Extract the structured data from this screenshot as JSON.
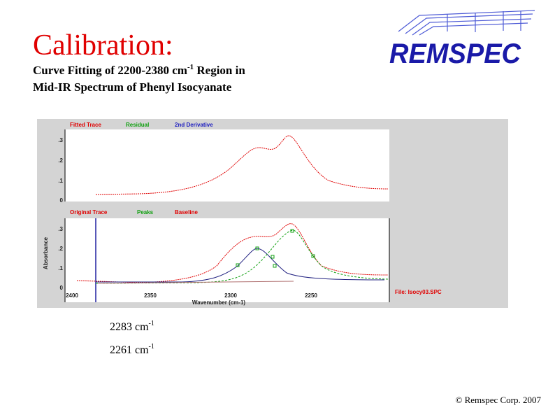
{
  "header": {
    "title": "Calibration:",
    "subtitle_line1": {
      "text": "Curve Fitting of 2200-2380 cm",
      "sup": "-1",
      "tail": " Region in"
    },
    "subtitle_line2": "Mid-IR Spectrum of Phenyl Isocyanate"
  },
  "logo": "REMSPEC",
  "screenshot": {
    "upper_legend": [
      "Fitted Trace",
      "Residual",
      "2nd Derivative"
    ],
    "upper_yticks": [
      ".3",
      ".2",
      ".1",
      "0"
    ],
    "lower_legend": [
      "Original Trace",
      "Peaks",
      "Baseline"
    ],
    "lower_yticks": [
      ".3",
      ".2",
      ".1",
      "0"
    ],
    "y_label": "Absorbance",
    "xticks": [
      "2400",
      "2350",
      "2300",
      "2250"
    ],
    "x_label": "Wavenumber (cm-1)",
    "file": "File: Isocy03.SPC"
  },
  "peak_labels": [
    {
      "text": "2283 cm",
      "sup": "-1"
    },
    {
      "text": "2261 cm",
      "sup": "-1"
    }
  ],
  "footer": "© Remspec Corp. 2007"
}
